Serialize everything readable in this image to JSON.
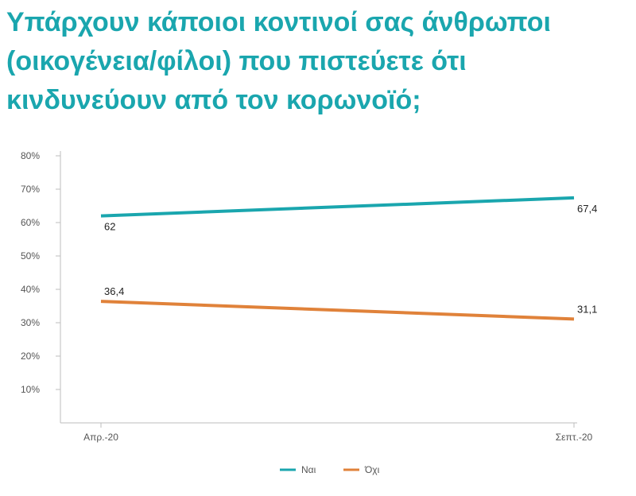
{
  "title_lines": [
    "Υπάρχουν κάποιοι κοντινοί σας άνθρωποι",
    "(οικογένεια/φίλοι) που πιστεύετε ότι",
    "κινδυνεύουν από τον κορωνοϊό;"
  ],
  "chart_data": {
    "type": "line",
    "categories": [
      "Απρ.-20",
      "Σεπτ.-20"
    ],
    "series": [
      {
        "name": "Ναι",
        "values": [
          62,
          67.4
        ],
        "labels": [
          "62",
          "67,4"
        ],
        "color": "#1aa6ae"
      },
      {
        "name": "Όχι",
        "values": [
          36.4,
          31.1
        ],
        "labels": [
          "36,4",
          "31,1"
        ],
        "color": "#e0823a"
      }
    ],
    "yticks": [
      "10%",
      "20%",
      "30%",
      "40%",
      "50%",
      "60%",
      "70%",
      "80%"
    ],
    "ytick_values": [
      10,
      20,
      30,
      40,
      50,
      60,
      70,
      80
    ],
    "ylim": [
      0,
      80
    ],
    "grid": false,
    "legend_position": "bottom-center"
  }
}
